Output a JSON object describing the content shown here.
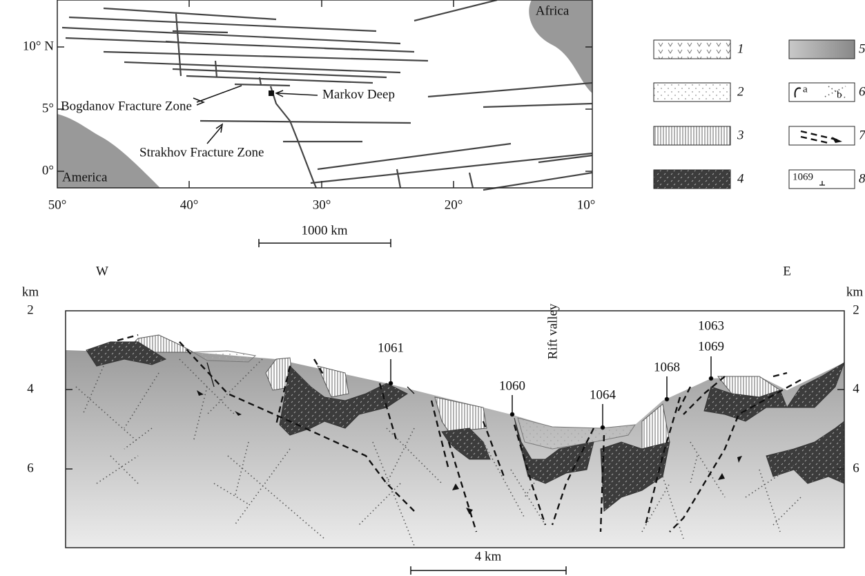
{
  "map": {
    "labels": {
      "africa": "Africa",
      "america": "America",
      "markov": "Markov Deep",
      "bogdanov": "Bogdanov Fracture Zone",
      "strakhov": "Strakhov Fracture Zone"
    },
    "lat_labels": [
      "10° N",
      "5°",
      "0°"
    ],
    "lon_labels": [
      "50°",
      "40°",
      "30°",
      "20°",
      "10°"
    ],
    "scale": "1000 km"
  },
  "legend": {
    "items": [
      "1",
      "2",
      "3",
      "4",
      "5",
      "6",
      "7",
      "8"
    ],
    "sub_a": "a",
    "sub_b": "b",
    "sample": "1069"
  },
  "section": {
    "west": "W",
    "east": "E",
    "unit_left": "km",
    "unit_right": "km",
    "depths_left": [
      "2",
      "4",
      "6"
    ],
    "depths_right": [
      "2",
      "4",
      "6"
    ],
    "rift": "Rift valley",
    "stations": [
      "1061",
      "1060",
      "1064",
      "1068",
      "1063",
      "1069"
    ],
    "scale": "4 km"
  }
}
